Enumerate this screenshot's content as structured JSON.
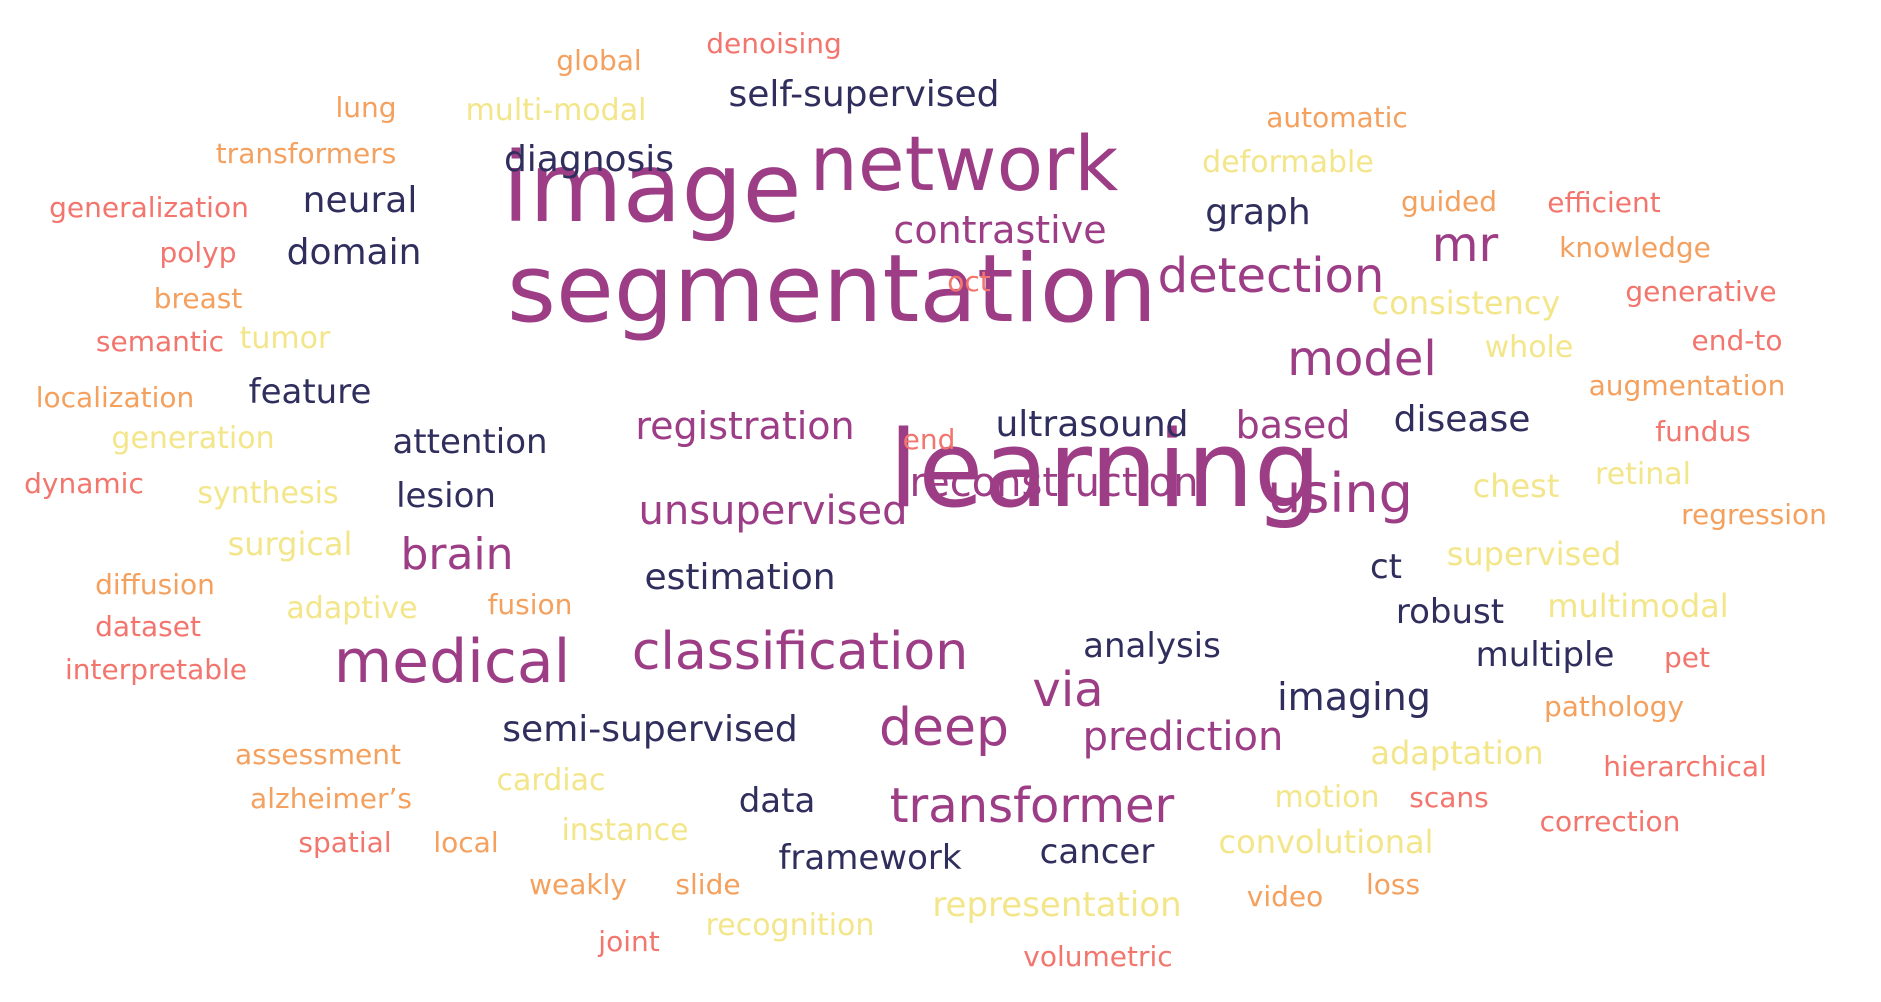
{
  "palette": {
    "plum": "#9c3d86",
    "navy": "#2f2e5d",
    "salmon": "#f2766d",
    "orange": "#f4a15f",
    "yellow": "#f3e68a"
  },
  "words": [
    {
      "text": "image",
      "color": "plum"
    },
    {
      "text": "segmentation",
      "color": "plum"
    },
    {
      "text": "learning",
      "color": "plum"
    },
    {
      "text": "network",
      "color": "plum"
    },
    {
      "text": "medical",
      "color": "plum"
    },
    {
      "text": "classification",
      "color": "plum"
    },
    {
      "text": "using",
      "color": "plum"
    },
    {
      "text": "deep",
      "color": "plum"
    },
    {
      "text": "transformer",
      "color": "plum"
    },
    {
      "text": "via",
      "color": "plum"
    },
    {
      "text": "model",
      "color": "plum"
    },
    {
      "text": "detection",
      "color": "plum"
    },
    {
      "text": "mr",
      "color": "plum"
    },
    {
      "text": "contrastive",
      "color": "plum"
    },
    {
      "text": "registration",
      "color": "plum"
    },
    {
      "text": "unsupervised",
      "color": "plum"
    },
    {
      "text": "brain",
      "color": "plum"
    },
    {
      "text": "reconstruction",
      "color": "plum"
    },
    {
      "text": "prediction",
      "color": "plum"
    },
    {
      "text": "based",
      "color": "plum"
    },
    {
      "text": "self-supervised",
      "color": "navy"
    },
    {
      "text": "diagnosis",
      "color": "navy"
    },
    {
      "text": "neural",
      "color": "navy"
    },
    {
      "text": "domain",
      "color": "navy"
    },
    {
      "text": "graph",
      "color": "navy"
    },
    {
      "text": "feature",
      "color": "navy"
    },
    {
      "text": "attention",
      "color": "navy"
    },
    {
      "text": "lesion",
      "color": "navy"
    },
    {
      "text": "ultrasound",
      "color": "navy"
    },
    {
      "text": "disease",
      "color": "navy"
    },
    {
      "text": "estimation",
      "color": "navy"
    },
    {
      "text": "ct",
      "color": "navy"
    },
    {
      "text": "robust",
      "color": "navy"
    },
    {
      "text": "analysis",
      "color": "navy"
    },
    {
      "text": "multiple",
      "color": "navy"
    },
    {
      "text": "imaging",
      "color": "navy"
    },
    {
      "text": "semi-supervised",
      "color": "navy"
    },
    {
      "text": "data",
      "color": "navy"
    },
    {
      "text": "framework",
      "color": "navy"
    },
    {
      "text": "cancer",
      "color": "navy"
    },
    {
      "text": "denoising",
      "color": "salmon"
    },
    {
      "text": "generalization",
      "color": "salmon"
    },
    {
      "text": "polyp",
      "color": "salmon"
    },
    {
      "text": "semantic",
      "color": "salmon"
    },
    {
      "text": "dynamic",
      "color": "salmon"
    },
    {
      "text": "interpretable",
      "color": "salmon"
    },
    {
      "text": "dataset",
      "color": "salmon"
    },
    {
      "text": "efficient",
      "color": "salmon"
    },
    {
      "text": "generative",
      "color": "salmon"
    },
    {
      "text": "end-to",
      "color": "salmon"
    },
    {
      "text": "fundus",
      "color": "salmon"
    },
    {
      "text": "pet",
      "color": "salmon"
    },
    {
      "text": "hierarchical",
      "color": "salmon"
    },
    {
      "text": "correction",
      "color": "salmon"
    },
    {
      "text": "scans",
      "color": "salmon"
    },
    {
      "text": "spatial",
      "color": "salmon"
    },
    {
      "text": "joint",
      "color": "salmon"
    },
    {
      "text": "volumetric",
      "color": "salmon"
    },
    {
      "text": "oct",
      "color": "salmon"
    },
    {
      "text": "end",
      "color": "salmon"
    },
    {
      "text": "global",
      "color": "orange"
    },
    {
      "text": "lung",
      "color": "orange"
    },
    {
      "text": "transformers",
      "color": "orange"
    },
    {
      "text": "breast",
      "color": "orange"
    },
    {
      "text": "localization",
      "color": "orange"
    },
    {
      "text": "diffusion",
      "color": "orange"
    },
    {
      "text": "assessment",
      "color": "orange"
    },
    {
      "text": "alzheimer’s",
      "color": "orange"
    },
    {
      "text": "local",
      "color": "orange"
    },
    {
      "text": "weakly",
      "color": "orange"
    },
    {
      "text": "slide",
      "color": "orange"
    },
    {
      "text": "fusion",
      "color": "orange"
    },
    {
      "text": "automatic",
      "color": "orange"
    },
    {
      "text": "guided",
      "color": "orange"
    },
    {
      "text": "knowledge",
      "color": "orange"
    },
    {
      "text": "augmentation",
      "color": "orange"
    },
    {
      "text": "regression",
      "color": "orange"
    },
    {
      "text": "pathology",
      "color": "orange"
    },
    {
      "text": "video",
      "color": "orange"
    },
    {
      "text": "loss",
      "color": "orange"
    },
    {
      "text": "multi-modal",
      "color": "yellow"
    },
    {
      "text": "deformable",
      "color": "yellow"
    },
    {
      "text": "consistency",
      "color": "yellow"
    },
    {
      "text": "whole",
      "color": "yellow"
    },
    {
      "text": "tumor",
      "color": "yellow"
    },
    {
      "text": "generation",
      "color": "yellow"
    },
    {
      "text": "synthesis",
      "color": "yellow"
    },
    {
      "text": "surgical",
      "color": "yellow"
    },
    {
      "text": "adaptive",
      "color": "yellow"
    },
    {
      "text": "cardiac",
      "color": "yellow"
    },
    {
      "text": "instance",
      "color": "yellow"
    },
    {
      "text": "recognition",
      "color": "yellow"
    },
    {
      "text": "representation",
      "color": "yellow"
    },
    {
      "text": "convolutional",
      "color": "yellow"
    },
    {
      "text": "motion",
      "color": "yellow"
    },
    {
      "text": "adaptation",
      "color": "yellow"
    },
    {
      "text": "multimodal",
      "color": "yellow"
    },
    {
      "text": "supervised",
      "color": "yellow"
    },
    {
      "text": "chest",
      "color": "yellow"
    },
    {
      "text": "retinal",
      "color": "yellow"
    }
  ]
}
